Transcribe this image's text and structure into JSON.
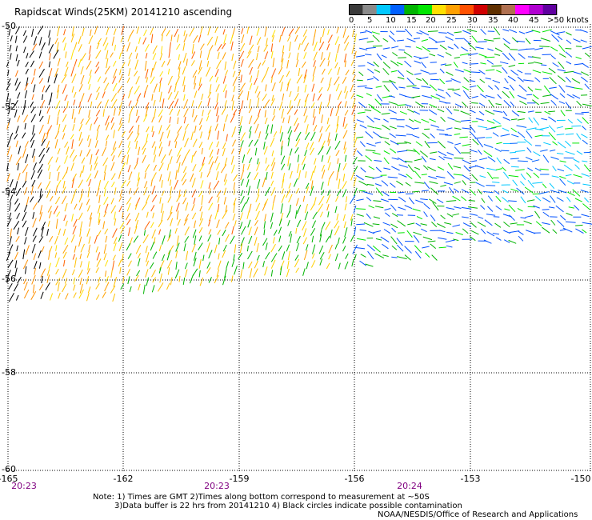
{
  "title": "Rapidscat Winds(25KM) 20141210 ascending",
  "colorbar": {
    "colors": [
      "#3a3a3a",
      "#8a8a8a",
      "#00c8ff",
      "#0060ff",
      "#00b400",
      "#00e600",
      "#ffe000",
      "#ffa000",
      "#ff5000",
      "#d00000",
      "#603000",
      "#b07050",
      "#ff00ff",
      "#b000d0",
      "#6000a0"
    ],
    "labels": [
      "0",
      "5",
      "10",
      "15",
      "20",
      "25",
      "30",
      "35",
      "40",
      "45",
      ">50 knots"
    ]
  },
  "map": {
    "lat_labels": [
      "-50",
      "-52",
      "-54",
      "-56",
      "-58",
      "-60"
    ],
    "lon_labels": [
      "-165",
      "-162",
      "-159",
      "-156",
      "-153",
      "-150"
    ],
    "time_labels": [
      "20:23",
      "20:23",
      "20:24"
    ]
  },
  "notes": {
    "line1": "Note: 1) Times are GMT 2)Times along bottom correspond to measurement at ~50S",
    "line2": "3)Data buffer is 22 hrs from 20141210 4) Black circles indicate possible contamination"
  },
  "credit": "NOAA/NESDIS/Office of Research and Applications"
}
